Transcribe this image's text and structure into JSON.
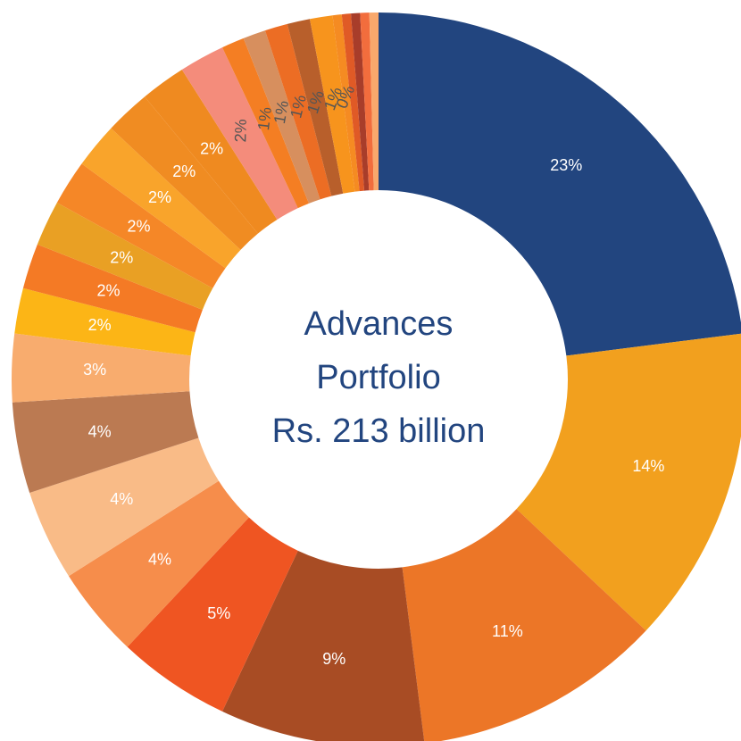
{
  "chart_data": {
    "type": "donut",
    "center_text": [
      "Advances",
      "Portfolio",
      "Rs. 213 billion"
    ],
    "values": [
      23,
      14,
      11,
      9,
      5,
      4,
      4,
      4,
      3,
      2,
      2,
      2,
      2,
      2,
      2,
      2,
      2,
      1,
      1,
      1,
      1,
      1,
      0.4,
      0.4,
      0.4,
      0.4,
      0.4
    ],
    "value_labels": [
      "23%",
      "14%",
      "11%",
      "9%",
      "5%",
      "4%",
      "4%",
      "4%",
      "3%",
      "2%",
      "2%",
      "2%",
      "2%",
      "2%",
      "2%",
      "2%",
      "2%",
      "1%",
      "1%",
      "1%",
      "1%",
      "1%",
      "0%",
      null,
      null,
      null,
      null
    ],
    "colors": [
      "#22457f",
      "#f2a01e",
      "#ec7627",
      "#a84c24",
      "#ef5522",
      "#f68d4b",
      "#f9bb87",
      "#bb7a52",
      "#f8ac6e",
      "#fcb516",
      "#f47a25",
      "#e9a024",
      "#f58727",
      "#f9a42b",
      "#f08c22",
      "#ef8a20",
      "#f48c7b",
      "#f47e23",
      "#d78f5e",
      "#ec6d24",
      "#b85f2b",
      "#f7941d",
      "#f58b22",
      "#e05a26",
      "#a83d2a",
      "#f26d3d",
      "#f9a86c"
    ]
  }
}
